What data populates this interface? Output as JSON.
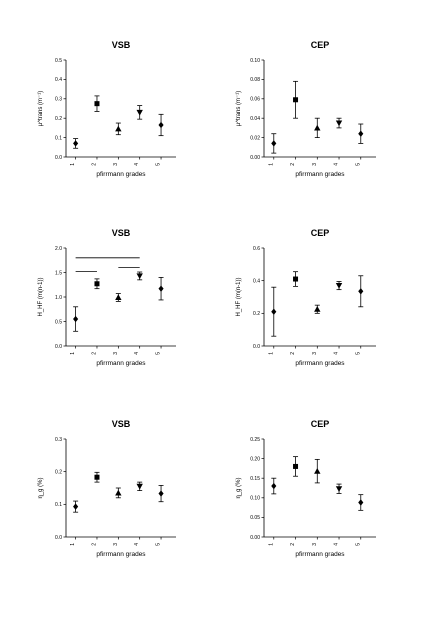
{
  "chart_data": [
    {
      "type": "scatter",
      "title": "VSB",
      "xlabel": "pfirrmann grades",
      "ylabel": "μ^trans (m⁻¹)",
      "categories": [
        "1",
        "2",
        "3",
        "4",
        "5"
      ],
      "ylim": [
        0,
        0.5
      ],
      "yticks": [
        "0.0",
        "0.1",
        "0.2",
        "0.3",
        "0.4",
        "0.5"
      ],
      "values": [
        0.07,
        0.275,
        0.145,
        0.23,
        0.165
      ],
      "errors": [
        0.025,
        0.04,
        0.03,
        0.035,
        0.055
      ],
      "markers": [
        "diamond",
        "square",
        "triangle-up",
        "triangle-down",
        "diamond"
      ]
    },
    {
      "type": "scatter",
      "title": "CEP",
      "xlabel": "pfirrmann grades",
      "ylabel": "μ^trans (m⁻¹)",
      "categories": [
        "1",
        "2",
        "3",
        "4",
        "5"
      ],
      "ylim": [
        0,
        0.1
      ],
      "yticks": [
        "0.00",
        "0.02",
        "0.04",
        "0.06",
        "0.08",
        "0.10"
      ],
      "values": [
        0.014,
        0.059,
        0.03,
        0.035,
        0.024
      ],
      "errors": [
        0.01,
        0.019,
        0.01,
        0.005,
        0.01
      ],
      "markers": [
        "diamond",
        "square",
        "triangle-up",
        "triangle-down",
        "diamond"
      ]
    },
    {
      "type": "scatter",
      "title": "VSB",
      "xlabel": "pfirrmann grades",
      "ylabel": "H_HF (m(n-1))",
      "categories": [
        "1",
        "2",
        "3",
        "4",
        "5"
      ],
      "ylim": [
        0,
        2.0
      ],
      "yticks": [
        "0.0",
        "0.5",
        "1.0",
        "1.5",
        "2.0"
      ],
      "values": [
        0.55,
        1.27,
        0.99,
        1.43,
        1.17
      ],
      "errors": [
        0.25,
        0.1,
        0.08,
        0.08,
        0.23
      ],
      "markers": [
        "diamond",
        "square",
        "triangle-up",
        "triangle-down",
        "diamond"
      ],
      "significance_lines": [
        [
          1,
          4,
          1.8
        ],
        [
          1,
          2,
          1.52
        ],
        [
          3,
          4,
          1.6
        ]
      ]
    },
    {
      "type": "scatter",
      "title": "CEP",
      "xlabel": "pfirrmann grades",
      "ylabel": "H_HF (m(n-1))",
      "categories": [
        "1",
        "2",
        "3",
        "4",
        "5"
      ],
      "ylim": [
        0,
        0.6
      ],
      "yticks": [
        "0.0",
        "0.2",
        "0.4",
        "0.6"
      ],
      "values": [
        0.21,
        0.41,
        0.225,
        0.37,
        0.335
      ],
      "errors": [
        0.15,
        0.045,
        0.025,
        0.025,
        0.095
      ],
      "markers": [
        "diamond",
        "square",
        "triangle-up",
        "triangle-down",
        "diamond"
      ]
    },
    {
      "type": "scatter",
      "title": "VSB",
      "xlabel": "pfirrmann grades",
      "ylabel": "η_g (%)",
      "categories": [
        "1",
        "2",
        "3",
        "4",
        "5"
      ],
      "ylim": [
        0,
        0.3
      ],
      "yticks": [
        "0.0",
        "0.1",
        "0.2",
        "0.3"
      ],
      "values": [
        0.093,
        0.183,
        0.135,
        0.155,
        0.133
      ],
      "errors": [
        0.017,
        0.015,
        0.015,
        0.013,
        0.025
      ],
      "markers": [
        "diamond",
        "square",
        "triangle-up",
        "triangle-down",
        "diamond"
      ]
    },
    {
      "type": "scatter",
      "title": "CEP",
      "xlabel": "pfirrmann grades",
      "ylabel": "η_g (%)",
      "categories": [
        "1",
        "2",
        "3",
        "4",
        "5"
      ],
      "ylim": [
        0,
        0.25
      ],
      "yticks": [
        "0.00",
        "0.05",
        "0.10",
        "0.15",
        "0.20",
        "0.25"
      ],
      "values": [
        0.13,
        0.18,
        0.168,
        0.123,
        0.088
      ],
      "errors": [
        0.02,
        0.025,
        0.03,
        0.012,
        0.02
      ],
      "markers": [
        "diamond",
        "square",
        "triangle-up",
        "triangle-down",
        "diamond"
      ]
    }
  ]
}
